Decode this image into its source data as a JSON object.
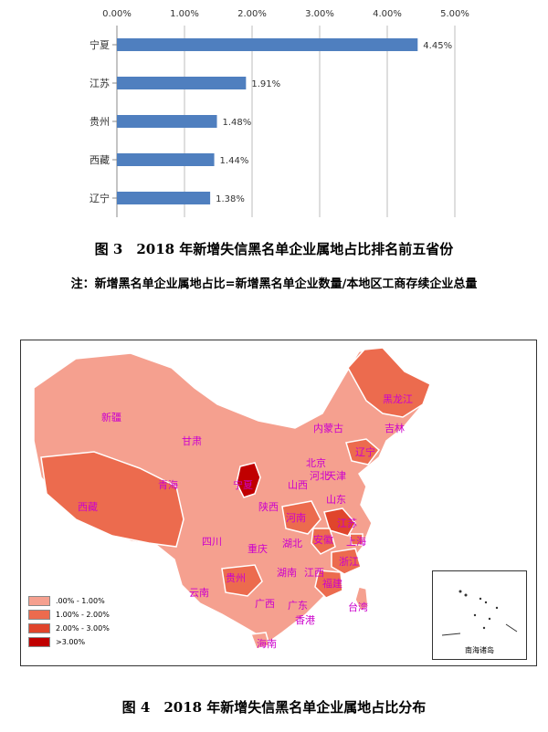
{
  "chart_data": {
    "type": "bar",
    "orientation": "horizontal",
    "categories": [
      "宁夏",
      "江苏",
      "贵州",
      "西藏",
      "辽宁"
    ],
    "values": [
      4.45,
      1.91,
      1.48,
      1.44,
      1.38
    ],
    "value_labels": [
      "4.45%",
      "1.91%",
      "1.48%",
      "1.44%",
      "1.38%"
    ],
    "x_ticks": [
      "0.00%",
      "1.00%",
      "2.00%",
      "3.00%",
      "4.00%",
      "5.00%"
    ],
    "xlim": [
      0,
      5
    ],
    "grid": true,
    "bar_color": "#4f7fbf"
  },
  "captions": {
    "fig3": "图 3　2018 年新增失信黑名单企业属地占比排名前五省份",
    "fig3_note": "注：新增黑名单企业属地占比=新增黑名单企业数量/本地区工商存续企业总量",
    "fig4": "图 4　2018 年新增失信黑名单企业属地占比分布"
  },
  "map": {
    "legend": [
      {
        "label": ".00% - 1.00%",
        "color": "#f5a08f"
      },
      {
        "label": "1.00% - 2.00%",
        "color": "#ec6b4e"
      },
      {
        "label": "2.00% - 3.00%",
        "color": "#e0452c"
      },
      {
        "label": ">3.00%",
        "color": "#c00000"
      }
    ],
    "provinces": [
      "新疆",
      "西藏",
      "青海",
      "甘肃",
      "内蒙古",
      "黑龙江",
      "吉林",
      "辽宁",
      "北京",
      "河北",
      "天津",
      "山西",
      "宁夏",
      "陕西",
      "山东",
      "河南",
      "江苏",
      "安徽",
      "上海",
      "湖北",
      "四川",
      "重庆",
      "浙江",
      "湖南",
      "江西",
      "贵州",
      "福建",
      "云南",
      "广西",
      "广东",
      "台湾",
      "香港",
      "海南"
    ],
    "inset_label": "南海诸岛"
  }
}
